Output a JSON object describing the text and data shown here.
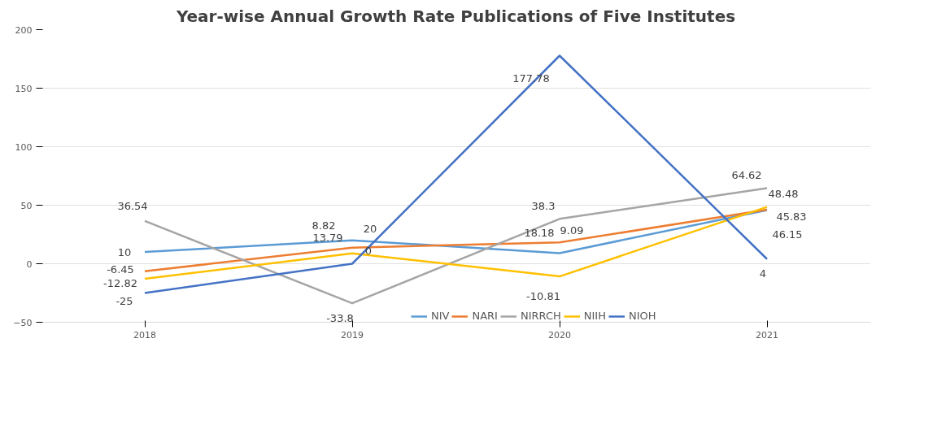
{
  "chart_data": {
    "type": "line",
    "title": "Year-wise Annual Growth Rate Publications of Five Institutes",
    "categories": [
      "2018",
      "2019",
      "2020",
      "2021"
    ],
    "series": [
      {
        "name": "NIV",
        "color": "#5b9bd5",
        "values": [
          10,
          20,
          9.09,
          45.83
        ]
      },
      {
        "name": "NARI",
        "color": "#ed7d31",
        "values": [
          -6.45,
          13.79,
          18.18,
          46.15
        ]
      },
      {
        "name": "NIRRCH",
        "color": "#a5a5a5",
        "values": [
          36.54,
          -33.8,
          38.3,
          64.62
        ]
      },
      {
        "name": "NIIH",
        "color": "#ffc000",
        "values": [
          -12.82,
          8.82,
          -10.81,
          48.48
        ]
      },
      {
        "name": "NIOH",
        "color": "#4472c4",
        "values": [
          -25,
          0,
          177.78,
          4
        ]
      }
    ],
    "ylim": [
      -50,
      200
    ],
    "yticks": [
      -50,
      0,
      50,
      100,
      150,
      200
    ],
    "grid": "y",
    "legend": "bottom",
    "data_labels": true,
    "marker": "none",
    "line_style": "solid"
  }
}
